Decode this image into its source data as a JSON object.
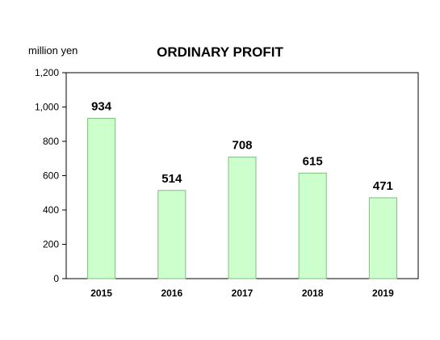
{
  "chart_data": {
    "type": "bar",
    "title": "ORDINARY PROFIT",
    "ylabel": "million yen",
    "xlabel": "",
    "categories": [
      "2015",
      "2016",
      "2017",
      "2018",
      "2019"
    ],
    "values": [
      934,
      514,
      708,
      615,
      471
    ],
    "data_labels": [
      "934",
      "514",
      "708",
      "615",
      "471"
    ],
    "y_ticks": [
      0,
      200,
      400,
      600,
      800,
      1000,
      1200
    ],
    "y_tick_labels": [
      "0",
      "200",
      "400",
      "600",
      "800",
      "1,000",
      "1,200"
    ],
    "ylim": [
      0,
      1200
    ],
    "grid": false,
    "legend": "none",
    "bar_color": "#ccffcc",
    "bar_edge_color": "#7fbf7f"
  }
}
